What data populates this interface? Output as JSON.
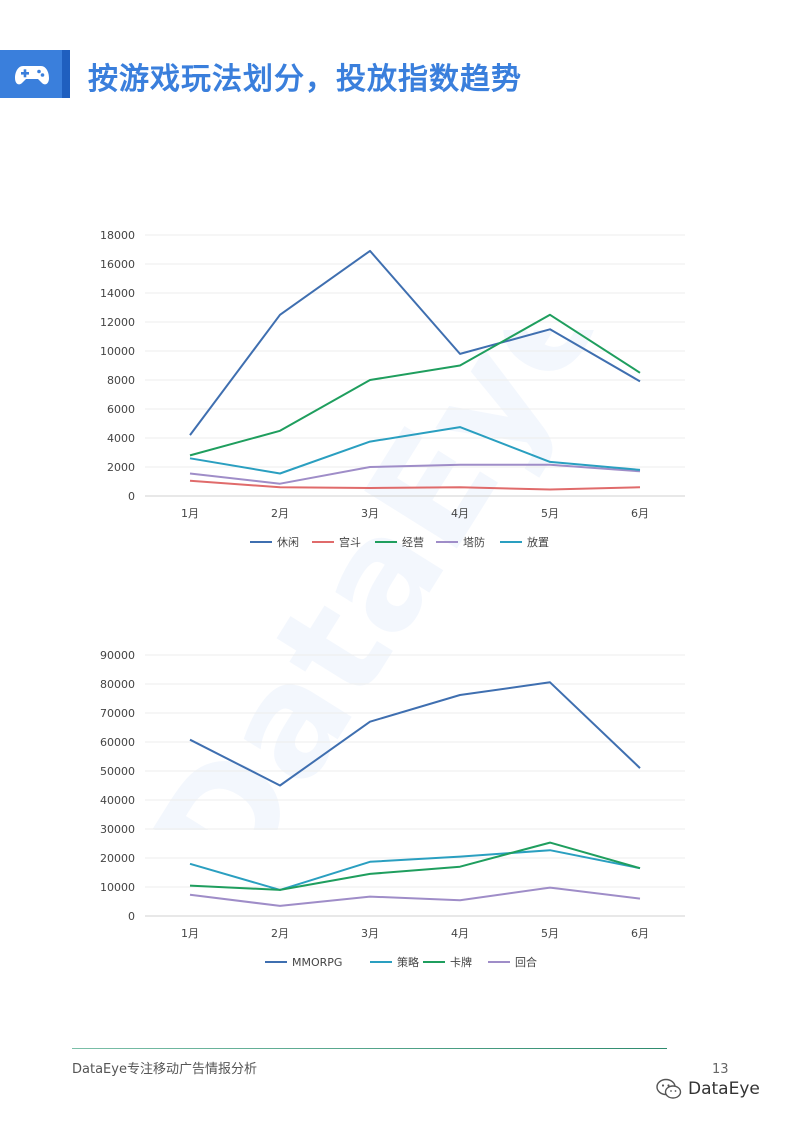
{
  "header": {
    "title": "按游戏玩法划分，投放指数趋势",
    "icon": "gamepad-icon",
    "accent_color": "#3a7fdc"
  },
  "watermark": "DataEye",
  "chart_data": [
    {
      "type": "line",
      "categories": [
        "1月",
        "2月",
        "3月",
        "4月",
        "5月",
        "6月"
      ],
      "ylim": [
        0,
        18000
      ],
      "yticks": [
        0,
        2000,
        4000,
        6000,
        8000,
        10000,
        12000,
        14000,
        16000,
        18000
      ],
      "grid": true,
      "legend_position": "bottom",
      "series": [
        {
          "name": "休闲",
          "color": "#3f6fb0",
          "values": [
            4200,
            12500,
            16900,
            9800,
            11500,
            7900
          ]
        },
        {
          "name": "宫斗",
          "color": "#e06b6b",
          "values": [
            1050,
            600,
            550,
            600,
            450,
            600
          ]
        },
        {
          "name": "经营",
          "color": "#1f9e5e",
          "values": [
            2800,
            4500,
            8000,
            9000,
            12500,
            8500
          ]
        },
        {
          "name": "塔防",
          "color": "#9f8dc8",
          "values": [
            1550,
            850,
            2000,
            2150,
            2150,
            1700
          ]
        },
        {
          "name": "放置",
          "color": "#2a9fc0",
          "values": [
            2600,
            1550,
            3750,
            4750,
            2350,
            1800
          ]
        }
      ]
    },
    {
      "type": "line",
      "categories": [
        "1月",
        "2月",
        "3月",
        "4月",
        "5月",
        "6月"
      ],
      "ylim": [
        0,
        90000
      ],
      "yticks": [
        0,
        10000,
        20000,
        30000,
        40000,
        50000,
        60000,
        70000,
        80000,
        90000
      ],
      "grid": true,
      "legend_position": "bottom",
      "series": [
        {
          "name": "MMORPG",
          "color": "#3f6fb0",
          "values": [
            60800,
            45000,
            67000,
            76200,
            80600,
            51000
          ]
        },
        {
          "name": "策略",
          "color": "#2a9fc0",
          "values": [
            18000,
            9000,
            18700,
            20500,
            22700,
            16500
          ]
        },
        {
          "name": "卡牌",
          "color": "#1f9e5e",
          "values": [
            10500,
            9000,
            14500,
            17000,
            25300,
            16500
          ]
        },
        {
          "name": "回合",
          "color": "#9f8dc8",
          "values": [
            7300,
            3500,
            6700,
            5400,
            9800,
            6000
          ]
        }
      ]
    }
  ],
  "footer": {
    "tagline": "DataEye专注移动广告情报分析",
    "page_number": "13",
    "brand": "DataEye"
  }
}
